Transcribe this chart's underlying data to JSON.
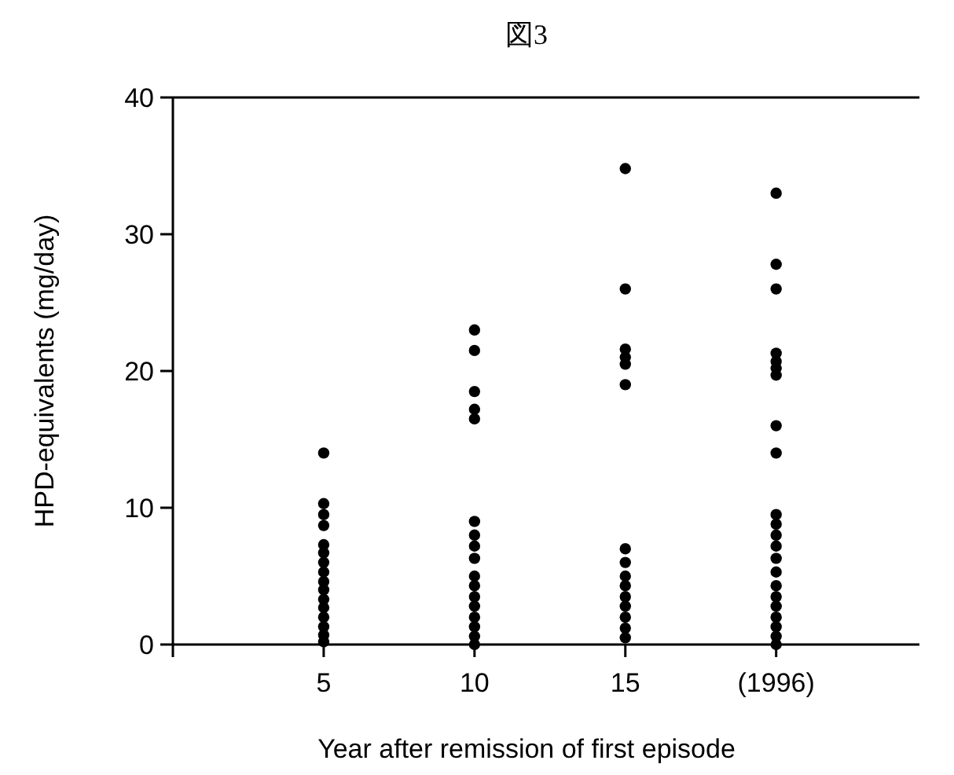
{
  "chart_data": {
    "type": "scatter",
    "title": "図3",
    "xlabel": "Year after remission of first episode",
    "ylabel": "HPD-equivalents (mg/day)",
    "categories": [
      "5",
      "10",
      "15",
      "(1996)"
    ],
    "ylim": [
      0,
      40
    ],
    "yticks": [
      0,
      10,
      20,
      30,
      40
    ],
    "marker": "circle",
    "series": [
      {
        "color": "#000000",
        "x": [
          "5",
          "5",
          "5",
          "5",
          "5",
          "5",
          "5",
          "5",
          "5",
          "5",
          "5",
          "5",
          "5",
          "5",
          "5",
          "5"
        ],
        "values": [
          14,
          10.3,
          9.5,
          8.7,
          7.3,
          6.7,
          6,
          5.3,
          4.6,
          4,
          3.3,
          2.7,
          2,
          1.3,
          0.7,
          0.2
        ]
      },
      {
        "color": "#000000",
        "x": [
          "10",
          "10",
          "10",
          "10",
          "10",
          "10",
          "10",
          "10",
          "10",
          "10",
          "10",
          "10",
          "10",
          "10",
          "10",
          "10",
          "10"
        ],
        "values": [
          23,
          21.5,
          18.5,
          17.2,
          16.5,
          9,
          8,
          7.2,
          6.3,
          5,
          4.3,
          3.5,
          2.8,
          2,
          1.3,
          0.6,
          0
        ]
      },
      {
        "color": "#000000",
        "x": [
          "15",
          "15",
          "15",
          "15",
          "15",
          "15",
          "15",
          "15",
          "15",
          "15",
          "15",
          "15",
          "15",
          "15",
          "15"
        ],
        "values": [
          34.8,
          26,
          21.6,
          21,
          20.5,
          19,
          7,
          6,
          5,
          4.3,
          3.5,
          2.8,
          2,
          1.2,
          0.5
        ]
      },
      {
        "color": "#000000",
        "x": [
          "(1996)",
          "(1996)",
          "(1996)",
          "(1996)",
          "(1996)",
          "(1996)",
          "(1996)",
          "(1996)",
          "(1996)",
          "(1996)",
          "(1996)",
          "(1996)",
          "(1996)",
          "(1996)",
          "(1996)",
          "(1996)",
          "(1996)",
          "(1996)",
          "(1996)",
          "(1996)",
          "(1996)",
          "(1996)"
        ],
        "values": [
          33,
          27.8,
          26,
          21.3,
          20.7,
          20.2,
          19.7,
          16,
          14,
          9.5,
          8.8,
          8,
          7.2,
          6.3,
          5.3,
          4.3,
          3.5,
          2.8,
          2,
          1.3,
          0.6,
          0
        ]
      }
    ]
  }
}
